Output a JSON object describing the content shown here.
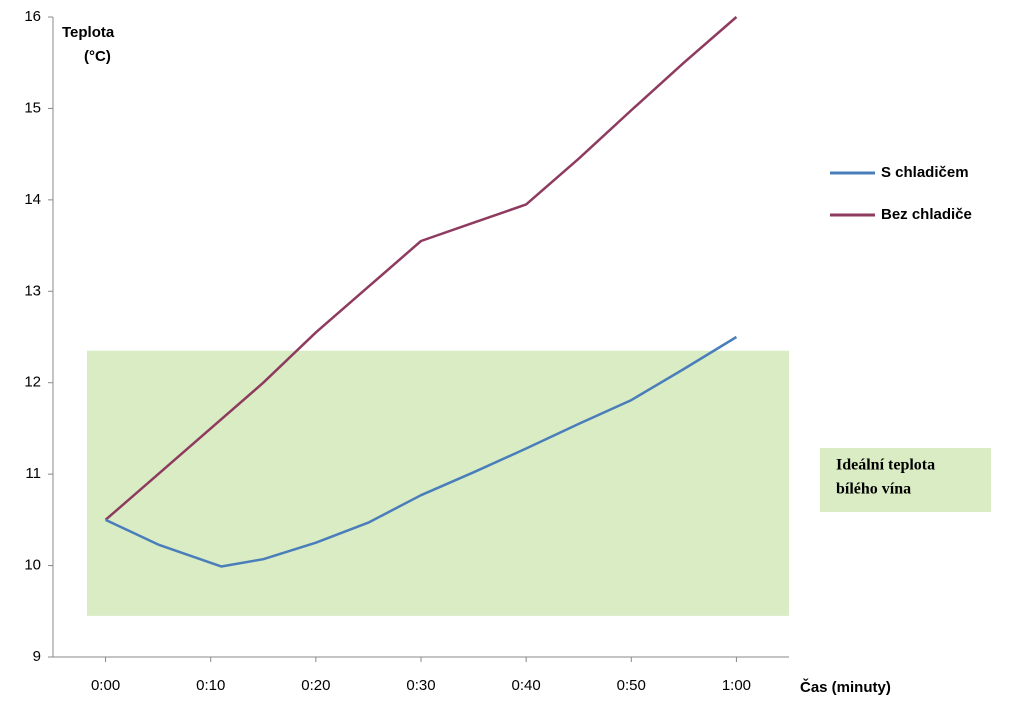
{
  "chart_data": {
    "type": "line",
    "ylabel": [
      "Teplota",
      "(°C)"
    ],
    "xlabel": "Čas (minuty)",
    "x": [
      0,
      5,
      10,
      11,
      15,
      20,
      25,
      30,
      35,
      40,
      45,
      50,
      55,
      60
    ],
    "series": [
      {
        "name": "S chladičem",
        "color": "#4a7ebb",
        "values": [
          10.5,
          10.23,
          10.03,
          9.99,
          10.07,
          10.25,
          10.47,
          10.77,
          11.02,
          11.28,
          11.55,
          11.81,
          12.15,
          12.5
        ]
      },
      {
        "name": "Bez chladiče",
        "color": "#8e3b5f",
        "values": [
          10.5,
          11.0,
          11.5,
          11.6,
          12.0,
          12.55,
          13.05,
          13.55,
          13.75,
          13.95,
          14.45,
          14.98,
          15.5,
          16.0
        ]
      }
    ],
    "xlim": [
      -5,
      65
    ],
    "xticks": [
      {
        "value": 0,
        "label": "0:00"
      },
      {
        "value": 10,
        "label": "0:10"
      },
      {
        "value": 20,
        "label": "0:20"
      },
      {
        "value": 30,
        "label": "0:30"
      },
      {
        "value": 40,
        "label": "0:40"
      },
      {
        "value": 50,
        "label": "0:50"
      },
      {
        "value": 60,
        "label": "1:00"
      }
    ],
    "ylim": [
      9,
      16
    ],
    "yticks": [
      9,
      10,
      11,
      12,
      13,
      14,
      15,
      16
    ],
    "band": {
      "ylim": [
        9.45,
        12.35
      ],
      "color": "#d9ecc4",
      "label": [
        "Ideální teplota",
        "bílého vína"
      ]
    },
    "legend": "right"
  }
}
